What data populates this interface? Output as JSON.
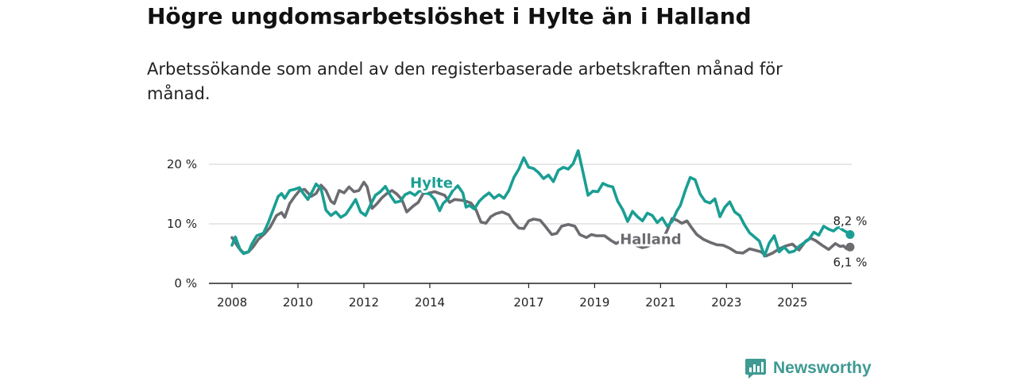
{
  "title": "Högre ungdomsarbetslöshet i Hylte än i Halland",
  "subtitle": "Arbetssökande som andel av den registerbaserade arbetskraften månad för månad.",
  "brand": {
    "name": "Newsworthy",
    "logo_icon": "bar-chart-speech-bubble-icon",
    "color": "#3f9a92"
  },
  "colors": {
    "hylte": "#1a9e93",
    "halland": "#6b6b70",
    "grid": "#d9d9d9",
    "axis": "#222222"
  },
  "chart_data": {
    "type": "line",
    "title": "Högre ungdomsarbetslöshet i Hylte än i Halland",
    "subtitle": "Arbetssökande som andel av den registerbaserade arbetskraften månad för månad.",
    "xlabel": "",
    "ylabel": "",
    "xlim": [
      2007.3,
      2026.8
    ],
    "ylim": [
      0,
      20
    ],
    "grid": true,
    "y_ticks": [
      0,
      10,
      20
    ],
    "y_tick_labels": [
      "0 %",
      "10 %",
      "20 %"
    ],
    "x_ticks": [
      2008,
      2010,
      2012,
      2014,
      2017,
      2019,
      2021,
      2023,
      2025
    ],
    "x_tick_labels": [
      "2008",
      "2010",
      "2012",
      "2014",
      "2017",
      "2019",
      "2021",
      "2023",
      "2025"
    ],
    "series": [
      {
        "name": "Halland",
        "label": "Halland",
        "color": "#6b6b70",
        "end_label": "6,1 %",
        "end_value": 6.1,
        "points": [
          [
            2008.0,
            7.7
          ],
          [
            2008.2,
            6.0
          ],
          [
            2008.35,
            5.1
          ],
          [
            2008.5,
            5.3
          ],
          [
            2008.65,
            6.2
          ],
          [
            2008.8,
            7.4
          ],
          [
            2009.0,
            8.4
          ],
          [
            2009.15,
            9.4
          ],
          [
            2009.35,
            11.4
          ],
          [
            2009.5,
            11.9
          ],
          [
            2009.6,
            11.1
          ],
          [
            2009.75,
            13.4
          ],
          [
            2009.9,
            14.6
          ],
          [
            2010.05,
            15.6
          ],
          [
            2010.2,
            15.8
          ],
          [
            2010.4,
            14.6
          ],
          [
            2010.55,
            15.1
          ],
          [
            2010.7,
            16.5
          ],
          [
            2010.85,
            15.6
          ],
          [
            2011.0,
            13.8
          ],
          [
            2011.1,
            13.4
          ],
          [
            2011.25,
            15.6
          ],
          [
            2011.4,
            15.2
          ],
          [
            2011.55,
            16.2
          ],
          [
            2011.7,
            15.4
          ],
          [
            2011.85,
            15.6
          ],
          [
            2012.0,
            17.0
          ],
          [
            2012.1,
            16.2
          ],
          [
            2012.25,
            12.6
          ],
          [
            2012.4,
            13.4
          ],
          [
            2012.55,
            14.4
          ],
          [
            2012.7,
            15.1
          ],
          [
            2012.85,
            15.6
          ],
          [
            2013.0,
            15.0
          ],
          [
            2013.15,
            14.1
          ],
          [
            2013.3,
            12.0
          ],
          [
            2013.5,
            13.0
          ],
          [
            2013.65,
            13.6
          ],
          [
            2013.8,
            15.1
          ],
          [
            2014.0,
            15.2
          ],
          [
            2014.15,
            15.4
          ],
          [
            2014.3,
            15.1
          ],
          [
            2014.45,
            14.8
          ],
          [
            2014.6,
            13.6
          ],
          [
            2014.75,
            14.1
          ],
          [
            2014.9,
            14.0
          ],
          [
            2015.05,
            13.9
          ],
          [
            2015.25,
            13.5
          ],
          [
            2015.4,
            12.4
          ],
          [
            2015.55,
            10.3
          ],
          [
            2015.7,
            10.1
          ],
          [
            2015.85,
            11.2
          ],
          [
            2016.0,
            11.7
          ],
          [
            2016.2,
            12.0
          ],
          [
            2016.4,
            11.5
          ],
          [
            2016.55,
            10.2
          ],
          [
            2016.7,
            9.3
          ],
          [
            2016.85,
            9.2
          ],
          [
            2017.0,
            10.5
          ],
          [
            2017.15,
            10.8
          ],
          [
            2017.35,
            10.6
          ],
          [
            2017.5,
            9.6
          ],
          [
            2017.7,
            8.2
          ],
          [
            2017.85,
            8.4
          ],
          [
            2018.0,
            9.6
          ],
          [
            2018.2,
            9.9
          ],
          [
            2018.4,
            9.6
          ],
          [
            2018.55,
            8.2
          ],
          [
            2018.75,
            7.7
          ],
          [
            2018.9,
            8.2
          ],
          [
            2019.05,
            8.0
          ],
          [
            2019.3,
            8.0
          ],
          [
            2019.5,
            7.2
          ],
          [
            2019.65,
            6.7
          ],
          [
            2019.8,
            7.1
          ],
          [
            2020.0,
            6.8
          ],
          [
            2020.25,
            6.4
          ],
          [
            2020.45,
            6.0
          ],
          [
            2020.6,
            6.2
          ],
          [
            2020.75,
            6.6
          ],
          [
            2021.05,
            7.2
          ],
          [
            2021.2,
            8.9
          ],
          [
            2021.35,
            10.9
          ],
          [
            2021.5,
            10.6
          ],
          [
            2021.65,
            10.1
          ],
          [
            2021.8,
            10.5
          ],
          [
            2021.95,
            9.3
          ],
          [
            2022.1,
            8.2
          ],
          [
            2022.3,
            7.4
          ],
          [
            2022.5,
            6.9
          ],
          [
            2022.7,
            6.5
          ],
          [
            2022.9,
            6.4
          ],
          [
            2023.1,
            5.9
          ],
          [
            2023.3,
            5.2
          ],
          [
            2023.5,
            5.1
          ],
          [
            2023.7,
            5.8
          ],
          [
            2023.85,
            5.6
          ],
          [
            2024.05,
            5.3
          ],
          [
            2024.2,
            4.6
          ],
          [
            2024.4,
            5.1
          ],
          [
            2024.6,
            5.8
          ],
          [
            2024.8,
            6.3
          ],
          [
            2025.0,
            6.6
          ],
          [
            2025.2,
            5.6
          ],
          [
            2025.4,
            7.1
          ],
          [
            2025.55,
            7.6
          ],
          [
            2025.7,
            7.2
          ],
          [
            2025.9,
            6.4
          ],
          [
            2026.1,
            5.7
          ],
          [
            2026.3,
            6.7
          ],
          [
            2026.45,
            6.2
          ],
          [
            2026.55,
            6.3
          ],
          [
            2026.65,
            5.8
          ],
          [
            2026.75,
            6.1
          ]
        ]
      },
      {
        "name": "Hylte",
        "label": "Hylte",
        "color": "#1a9e93",
        "end_label": "8,2 %",
        "end_value": 8.2,
        "points": [
          [
            2008.0,
            6.4
          ],
          [
            2008.1,
            7.8
          ],
          [
            2008.25,
            5.6
          ],
          [
            2008.35,
            5.0
          ],
          [
            2008.5,
            5.3
          ],
          [
            2008.6,
            6.6
          ],
          [
            2008.75,
            8.0
          ],
          [
            2008.95,
            8.4
          ],
          [
            2009.1,
            10.2
          ],
          [
            2009.25,
            12.4
          ],
          [
            2009.4,
            14.6
          ],
          [
            2009.5,
            15.1
          ],
          [
            2009.6,
            14.3
          ],
          [
            2009.75,
            15.6
          ],
          [
            2009.9,
            15.8
          ],
          [
            2010.05,
            16.1
          ],
          [
            2010.15,
            15.2
          ],
          [
            2010.3,
            14.1
          ],
          [
            2010.45,
            15.6
          ],
          [
            2010.55,
            16.7
          ],
          [
            2010.7,
            15.9
          ],
          [
            2010.85,
            12.3
          ],
          [
            2011.0,
            11.4
          ],
          [
            2011.15,
            12.0
          ],
          [
            2011.3,
            11.1
          ],
          [
            2011.45,
            11.6
          ],
          [
            2011.6,
            12.8
          ],
          [
            2011.75,
            14.1
          ],
          [
            2011.9,
            12.0
          ],
          [
            2012.05,
            11.4
          ],
          [
            2012.2,
            13.2
          ],
          [
            2012.35,
            14.8
          ],
          [
            2012.5,
            15.4
          ],
          [
            2012.65,
            16.3
          ],
          [
            2012.8,
            14.8
          ],
          [
            2012.95,
            13.6
          ],
          [
            2013.1,
            13.8
          ],
          [
            2013.25,
            14.9
          ],
          [
            2013.4,
            15.3
          ],
          [
            2013.55,
            14.8
          ],
          [
            2013.7,
            15.6
          ],
          [
            2013.85,
            15.2
          ],
          [
            2014.0,
            15.0
          ],
          [
            2014.15,
            14.1
          ],
          [
            2014.3,
            12.2
          ],
          [
            2014.4,
            13.4
          ],
          [
            2014.55,
            14.2
          ],
          [
            2014.7,
            15.6
          ],
          [
            2014.85,
            16.4
          ],
          [
            2015.0,
            15.2
          ],
          [
            2015.1,
            12.8
          ],
          [
            2015.2,
            13.1
          ],
          [
            2015.35,
            12.5
          ],
          [
            2015.5,
            13.8
          ],
          [
            2015.65,
            14.6
          ],
          [
            2015.8,
            15.2
          ],
          [
            2015.95,
            14.3
          ],
          [
            2016.1,
            14.9
          ],
          [
            2016.25,
            14.3
          ],
          [
            2016.4,
            15.6
          ],
          [
            2016.55,
            17.8
          ],
          [
            2016.7,
            19.2
          ],
          [
            2016.85,
            21.1
          ],
          [
            2017.0,
            19.5
          ],
          [
            2017.15,
            19.3
          ],
          [
            2017.3,
            18.6
          ],
          [
            2017.45,
            17.6
          ],
          [
            2017.6,
            18.2
          ],
          [
            2017.75,
            17.1
          ],
          [
            2017.9,
            19.0
          ],
          [
            2018.05,
            19.5
          ],
          [
            2018.2,
            19.2
          ],
          [
            2018.35,
            20.1
          ],
          [
            2018.5,
            22.3
          ],
          [
            2018.65,
            18.6
          ],
          [
            2018.8,
            14.8
          ],
          [
            2018.95,
            15.5
          ],
          [
            2019.1,
            15.4
          ],
          [
            2019.25,
            16.8
          ],
          [
            2019.4,
            16.4
          ],
          [
            2019.55,
            16.2
          ],
          [
            2019.7,
            13.8
          ],
          [
            2019.85,
            12.4
          ],
          [
            2020.0,
            10.4
          ],
          [
            2020.15,
            12.1
          ],
          [
            2020.3,
            11.2
          ],
          [
            2020.45,
            10.5
          ],
          [
            2020.6,
            11.8
          ],
          [
            2020.75,
            11.4
          ],
          [
            2020.9,
            10.2
          ],
          [
            2021.05,
            11.0
          ],
          [
            2021.2,
            9.6
          ],
          [
            2021.35,
            10.4
          ],
          [
            2021.5,
            12.2
          ],
          [
            2021.6,
            13.1
          ],
          [
            2021.75,
            15.6
          ],
          [
            2021.9,
            17.8
          ],
          [
            2022.05,
            17.4
          ],
          [
            2022.2,
            15.0
          ],
          [
            2022.35,
            13.8
          ],
          [
            2022.5,
            13.5
          ],
          [
            2022.65,
            14.2
          ],
          [
            2022.8,
            11.2
          ],
          [
            2022.95,
            12.8
          ],
          [
            2023.1,
            13.7
          ],
          [
            2023.25,
            12.0
          ],
          [
            2023.4,
            11.4
          ],
          [
            2023.55,
            9.8
          ],
          [
            2023.7,
            8.5
          ],
          [
            2023.85,
            7.8
          ],
          [
            2024.0,
            7.1
          ],
          [
            2024.15,
            4.6
          ],
          [
            2024.3,
            6.8
          ],
          [
            2024.45,
            8.0
          ],
          [
            2024.6,
            5.3
          ],
          [
            2024.75,
            6.1
          ],
          [
            2024.9,
            5.2
          ],
          [
            2025.05,
            5.4
          ],
          [
            2025.2,
            6.2
          ],
          [
            2025.35,
            6.8
          ],
          [
            2025.5,
            7.4
          ],
          [
            2025.65,
            8.6
          ],
          [
            2025.8,
            8.1
          ],
          [
            2025.95,
            9.6
          ],
          [
            2026.1,
            9.1
          ],
          [
            2026.25,
            8.8
          ],
          [
            2026.4,
            9.5
          ],
          [
            2026.55,
            8.9
          ],
          [
            2026.65,
            8.6
          ],
          [
            2026.75,
            8.2
          ]
        ]
      }
    ]
  }
}
